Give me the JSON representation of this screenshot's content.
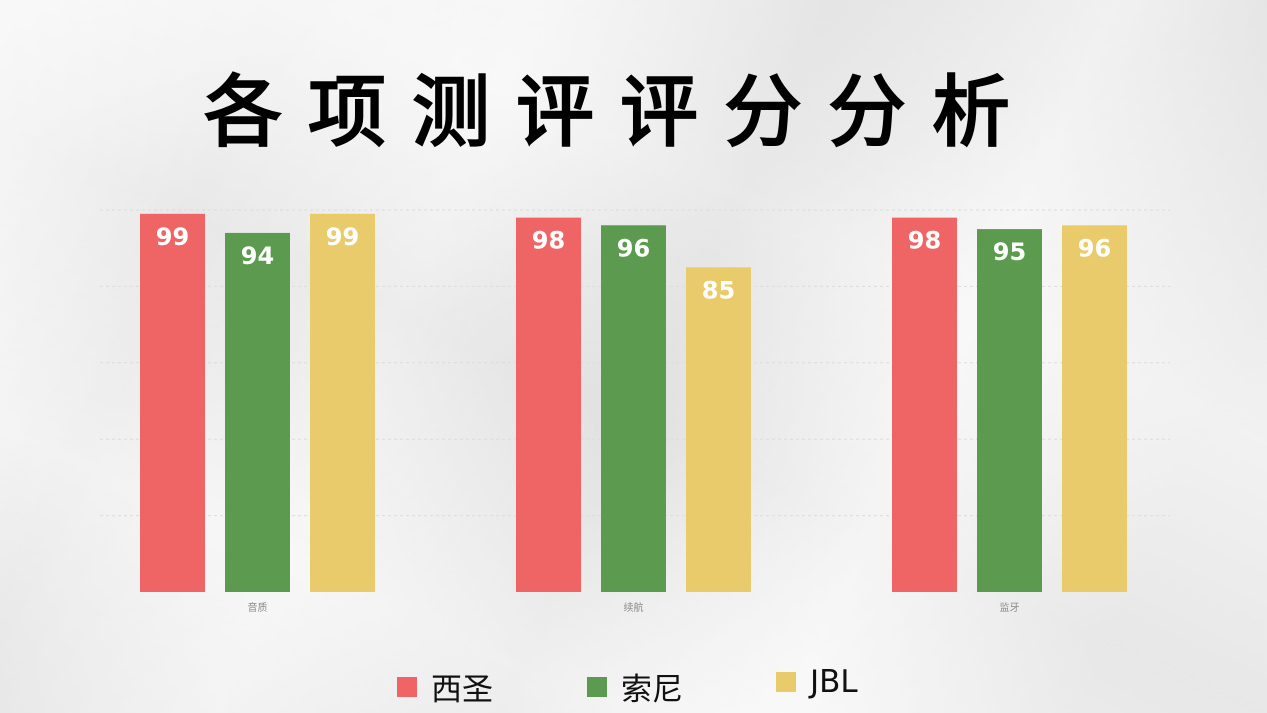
{
  "title": "各项测评评分分析",
  "chart_data": {
    "type": "bar",
    "categories": [
      "音质",
      "续航",
      "监牙"
    ],
    "series": [
      {
        "name": "西圣",
        "color": "#ef6464",
        "values": [
          99,
          98,
          98
        ]
      },
      {
        "name": "索尼",
        "color": "#5b9a4f",
        "values": [
          94,
          96,
          95
        ]
      },
      {
        "name": "JBL",
        "color": "#eacb6c",
        "values": [
          99,
          85,
          96
        ]
      }
    ],
    "ylim": [
      0,
      100
    ],
    "grid": true,
    "legend": "bottom"
  }
}
